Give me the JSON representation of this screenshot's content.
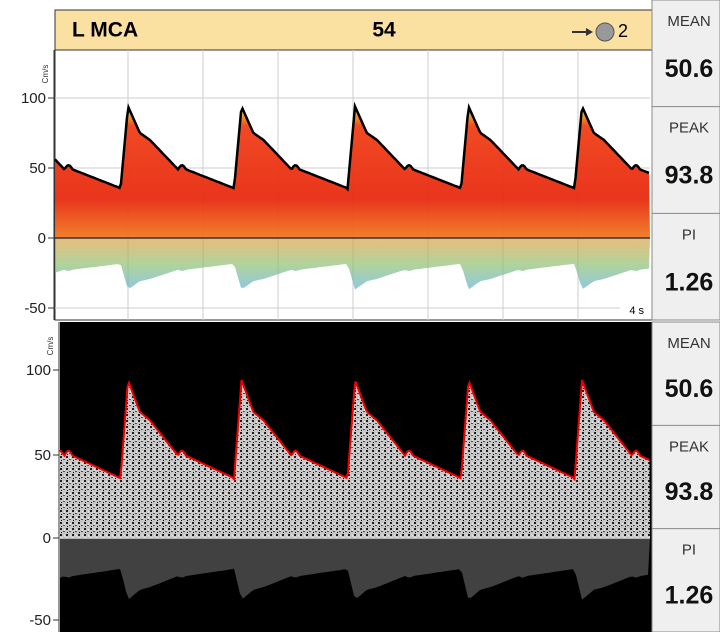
{
  "header": {
    "vessel": "L MCA",
    "depth": "54",
    "gate": "2"
  },
  "panels": [
    {
      "unit": "Cm/s",
      "yticks": [
        "100",
        "50",
        "0",
        "-50"
      ],
      "scale": "4 s",
      "metrics": [
        {
          "label": "MEAN",
          "value": "50.6"
        },
        {
          "label": "PEAK",
          "value": "93.8"
        },
        {
          "label": "PI",
          "value": "1.26"
        }
      ]
    },
    {
      "unit": "Cm/s",
      "yticks": [
        "100",
        "50",
        "0",
        "-50"
      ],
      "metrics": [
        {
          "label": "MEAN",
          "value": "50.6"
        },
        {
          "label": "PEAK",
          "value": "93.8"
        },
        {
          "label": "PI",
          "value": "1.26"
        }
      ]
    }
  ]
}
